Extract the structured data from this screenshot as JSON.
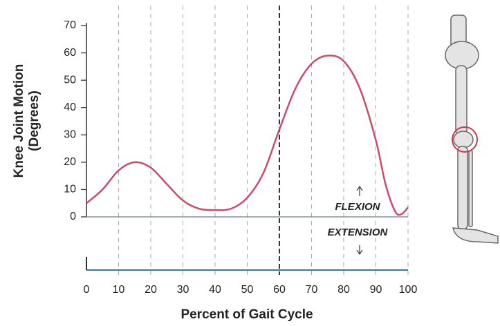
{
  "chart_data": {
    "type": "line",
    "ylabel": [
      "Knee Joint Motion",
      "(Degrees)"
    ],
    "xlabel": "Percent of Gait Cycle",
    "x": [
      0,
      5,
      10,
      15,
      20,
      25,
      30,
      35,
      40,
      45,
      50,
      55,
      60,
      65,
      70,
      75,
      80,
      85,
      90,
      93,
      96,
      98,
      100
    ],
    "series": [
      {
        "color": "#cf4a66",
        "values": [
          5,
          10,
          17,
          20,
          18,
          12,
          6,
          3,
          2.5,
          3,
          7,
          16,
          32,
          47,
          56,
          59,
          57,
          47,
          28,
          12,
          2,
          1,
          3.5
        ]
      }
    ],
    "xlim": [
      0,
      100
    ],
    "xticks": [
      0,
      10,
      20,
      30,
      40,
      50,
      60,
      70,
      80,
      90,
      100
    ],
    "ylim": [
      0,
      70
    ],
    "yticks": [
      0,
      10,
      20,
      30,
      40,
      50,
      60,
      70
    ],
    "grid": true,
    "emphasized_xtick": 60,
    "annotations": {
      "flexion": "FLEXION",
      "extension": "EXTENSION"
    }
  }
}
